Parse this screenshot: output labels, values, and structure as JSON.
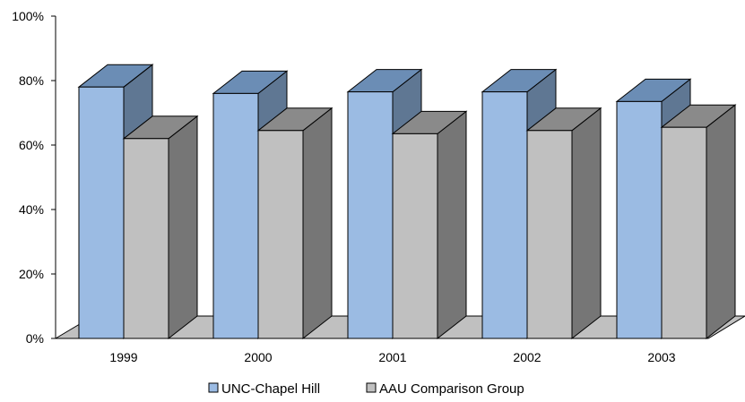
{
  "chart_data": {
    "type": "bar",
    "style": "3d-clustered",
    "categories": [
      "1999",
      "2000",
      "2001",
      "2002",
      "2003"
    ],
    "series": [
      {
        "name": "UNC-Chapel Hill",
        "values": [
          78,
          76,
          76.5,
          76.5,
          73.5
        ],
        "color": "#9BBBE3",
        "top_color": "#6B8DB5",
        "side_color": "#5F7793"
      },
      {
        "name": "AAU Comparison Group",
        "values": [
          62,
          64.5,
          63.5,
          64.5,
          65.5
        ],
        "color": "#C0C0C0",
        "top_color": "#8A8A8A",
        "side_color": "#767676"
      }
    ],
    "y_ticks": [
      "0%",
      "20%",
      "40%",
      "60%",
      "80%",
      "100%"
    ],
    "ylim": [
      0,
      100
    ],
    "grid": false,
    "legend_position": "bottom"
  }
}
